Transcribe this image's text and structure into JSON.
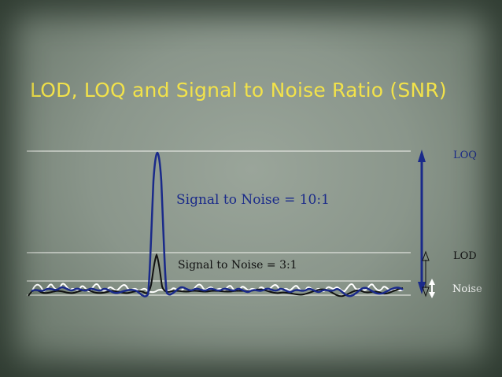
{
  "slide": {
    "title": "LOD, LOQ and Signal to Noise Ratio (SNR)"
  },
  "diagram": {
    "labels": {
      "snr_high": "Signal to Noise = 10:1",
      "snr_low": "Signal to Noise = 3:1",
      "loq": "LOQ",
      "lod": "LOD",
      "noise": "Noise"
    },
    "colors": {
      "title": "#f2e24a",
      "high_signal": "#1a2a8a",
      "low_signal": "#111111",
      "noise": "#ffffff"
    },
    "ratios": {
      "high": 10,
      "low": 3
    }
  }
}
